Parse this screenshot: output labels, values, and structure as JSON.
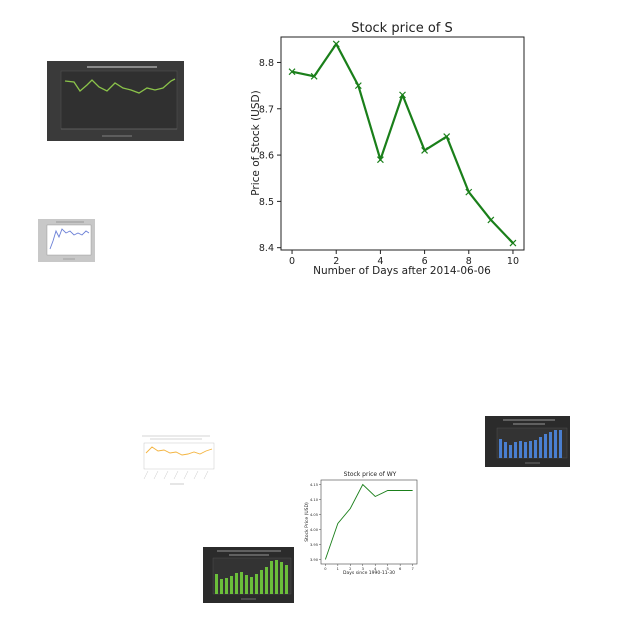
{
  "chart_data": [
    {
      "type": "line",
      "title": "Stock price of S",
      "xlabel": "Number of Days after 2014-06-06",
      "ylabel": "Price of Stock (USD)",
      "x": [
        0,
        1,
        2,
        3,
        4,
        5,
        6,
        7,
        8,
        9,
        10
      ],
      "series": [
        {
          "values": [
            8.78,
            8.77,
            8.84,
            8.75,
            8.59,
            8.73,
            8.61,
            8.64,
            8.52,
            8.46,
            8.41
          ]
        }
      ],
      "xlim": [
        -0.5,
        10.5
      ],
      "ylim": [
        8.395,
        8.855
      ],
      "xticks": [
        "0",
        "2",
        "4",
        "6",
        "8",
        "10"
      ],
      "yticks": [
        "8.4",
        "8.5",
        "8.6",
        "8.7",
        "8.8"
      ],
      "marker": "x",
      "line_color": "#1a7f1a",
      "grid": false
    },
    {
      "type": "line",
      "title": "Stock price of WY",
      "xlabel": "Days since 1990-11-30",
      "ylabel": "Stock Price (USD)",
      "x": [
        0,
        1,
        2,
        3,
        4,
        5,
        6,
        7
      ],
      "series": [
        {
          "values": [
            3.9,
            4.02,
            4.07,
            4.15,
            4.11,
            4.13,
            4.13,
            4.13
          ]
        }
      ],
      "xticks": [
        "0",
        "1",
        "2",
        "3",
        "4",
        "5",
        "6",
        "7"
      ],
      "yticks": [
        "3.90",
        "3.95",
        "4.00",
        "4.05",
        "4.10",
        "4.15"
      ],
      "line_color": "#1a7f1a",
      "grid": false
    }
  ],
  "thumbnails": [
    {
      "name": "thumb-dark-line",
      "bg": "#2e2e2e",
      "accent": "#8bc34a"
    },
    {
      "name": "thumb-gray-line",
      "bg": "#c8c8c8",
      "accent": "#6a7fd6"
    },
    {
      "name": "thumb-orange-line",
      "bg": "#ffffff",
      "accent": "#f4b440"
    },
    {
      "name": "thumb-dark-blue-bars",
      "bg": "#2b2b2b",
      "accent": "#4a7fd0"
    },
    {
      "name": "thumb-dark-green-bars",
      "bg": "#2b2b2b",
      "accent": "#6bbf3a"
    }
  ]
}
